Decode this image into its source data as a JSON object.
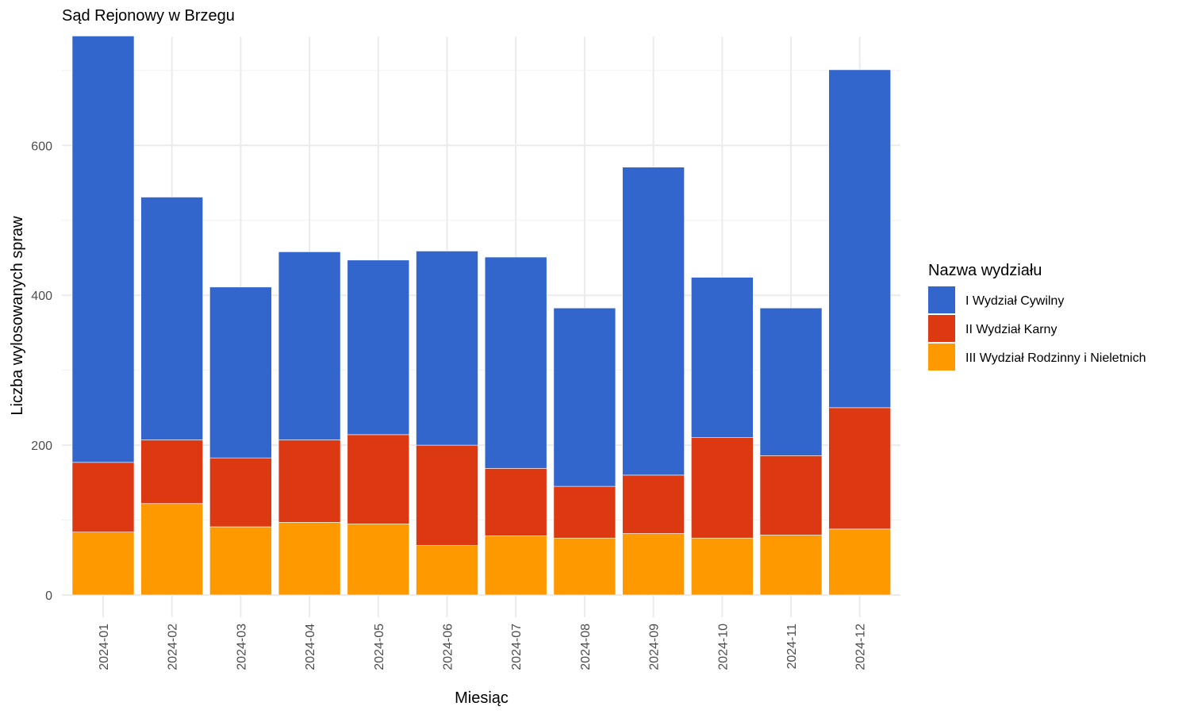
{
  "chart_data": {
    "type": "bar",
    "stacked": true,
    "title": "Sąd Rejonowy w Brzegu",
    "xlabel": "Miesiąc",
    "ylabel": "Liczba wylosowanych spraw",
    "ylim": [
      0,
      745
    ],
    "yticks": [
      0,
      200,
      400,
      600
    ],
    "grid": true,
    "legend_position": "right",
    "legend_title": "Nazwa wydziału",
    "categories": [
      "2024-01",
      "2024-02",
      "2024-03",
      "2024-04",
      "2024-05",
      "2024-06",
      "2024-07",
      "2024-08",
      "2024-09",
      "2024-10",
      "2024-11",
      "2024-12"
    ],
    "series": [
      {
        "name": "III Wydział Rodzinny i Nieletnich",
        "color": "#ff9900",
        "values": [
          84,
          122,
          91,
          97,
          95,
          66,
          79,
          76,
          82,
          76,
          80,
          88
        ]
      },
      {
        "name": "II Wydział Karny",
        "color": "#dc3912",
        "values": [
          93,
          85,
          92,
          110,
          119,
          134,
          90,
          69,
          78,
          134,
          106,
          162
        ]
      },
      {
        "name": "I Wydział Cywilny",
        "color": "#3366cc",
        "values": [
          569,
          324,
          228,
          251,
          233,
          259,
          282,
          238,
          411,
          214,
          197,
          451
        ]
      }
    ],
    "legend_order": [
      "I Wydział Cywilny",
      "II Wydział Karny",
      "III Wydział Rodzinny i Nieletnich"
    ]
  }
}
